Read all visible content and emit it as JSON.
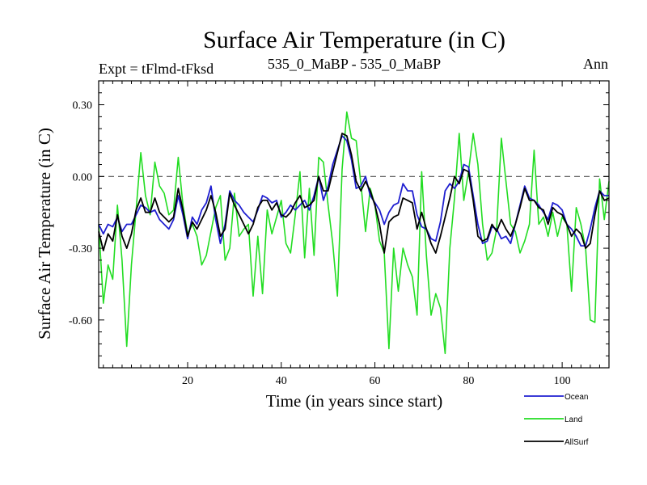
{
  "chart_data": {
    "type": "line",
    "title": "Surface Air Temperature (in C)",
    "subtitle_left": "Expt = tFlmd-tFksd",
    "subtitle_center": "535_0_MaBP - 535_0_MaBP",
    "subtitle_right": "Ann",
    "xlabel": "Time (in years since start)",
    "ylabel": "Surface Air Temperature (in C)",
    "xlim": [
      1,
      110
    ],
    "ylim": [
      -0.8,
      0.4
    ],
    "xticks": [
      20,
      40,
      60,
      80,
      100
    ],
    "xtick_labels": [
      "20",
      "40",
      "60",
      "80",
      "100"
    ],
    "yticks": [
      0.3,
      0.0,
      -0.3,
      -0.6
    ],
    "ytick_labels": [
      "0.30",
      "0.00",
      "-0.30",
      "-0.60"
    ],
    "reference_line": 0.0,
    "legend_position": "bottom-right",
    "colors": {
      "Ocean": "#1f1fd0",
      "Land": "#22dd22",
      "AllSurf": "#000000",
      "reference": "#555555"
    },
    "x": [
      1,
      2,
      3,
      4,
      5,
      6,
      7,
      8,
      9,
      10,
      11,
      12,
      13,
      14,
      15,
      16,
      17,
      18,
      19,
      20,
      21,
      22,
      23,
      24,
      25,
      26,
      27,
      28,
      29,
      30,
      31,
      32,
      33,
      34,
      35,
      36,
      37,
      38,
      39,
      40,
      41,
      42,
      43,
      44,
      45,
      46,
      47,
      48,
      49,
      50,
      51,
      52,
      53,
      54,
      55,
      56,
      57,
      58,
      59,
      60,
      61,
      62,
      63,
      64,
      65,
      66,
      67,
      68,
      69,
      70,
      71,
      72,
      73,
      74,
      75,
      76,
      77,
      78,
      79,
      80,
      81,
      82,
      83,
      84,
      85,
      86,
      87,
      88,
      89,
      90,
      91,
      92,
      93,
      94,
      95,
      96,
      97,
      98,
      99,
      100,
      101,
      102,
      103,
      104,
      105,
      106,
      107,
      108,
      109,
      110
    ],
    "series": [
      {
        "name": "Land",
        "values": [
          -0.2,
          -0.53,
          -0.37,
          -0.43,
          -0.12,
          -0.35,
          -0.71,
          -0.37,
          -0.14,
          0.1,
          -0.08,
          -0.16,
          0.06,
          -0.04,
          -0.07,
          -0.16,
          -0.14,
          0.08,
          -0.12,
          -0.24,
          -0.2,
          -0.25,
          -0.37,
          -0.33,
          -0.23,
          -0.13,
          -0.08,
          -0.35,
          -0.3,
          -0.07,
          -0.25,
          -0.22,
          -0.2,
          -0.5,
          -0.25,
          -0.49,
          -0.14,
          -0.24,
          -0.17,
          -0.1,
          -0.28,
          -0.32,
          -0.16,
          0.02,
          -0.34,
          -0.05,
          -0.33,
          0.08,
          0.06,
          -0.12,
          -0.28,
          -0.5,
          0.03,
          0.27,
          0.16,
          0.15,
          -0.03,
          -0.23,
          -0.05,
          -0.12,
          -0.27,
          -0.32,
          -0.72,
          -0.3,
          -0.48,
          -0.3,
          -0.37,
          -0.42,
          -0.58,
          0.02,
          -0.33,
          -0.58,
          -0.49,
          -0.55,
          -0.74,
          -0.3,
          -0.09,
          0.18,
          -0.1,
          0.02,
          0.18,
          0.05,
          -0.2,
          -0.35,
          -0.32,
          -0.22,
          0.16,
          -0.02,
          -0.2,
          -0.23,
          -0.32,
          -0.27,
          -0.2,
          0.11,
          -0.2,
          -0.17,
          -0.25,
          -0.15,
          -0.25,
          -0.17,
          -0.2,
          -0.48,
          -0.13,
          -0.2,
          -0.3,
          -0.6,
          -0.61,
          -0.01,
          -0.18,
          -0.02
        ]
      },
      {
        "name": "Ocean",
        "values": [
          -0.2,
          -0.24,
          -0.2,
          -0.21,
          -0.17,
          -0.23,
          -0.2,
          -0.2,
          -0.16,
          -0.12,
          -0.13,
          -0.15,
          -0.14,
          -0.18,
          -0.2,
          -0.22,
          -0.18,
          -0.08,
          -0.16,
          -0.26,
          -0.17,
          -0.2,
          -0.14,
          -0.11,
          -0.04,
          -0.18,
          -0.28,
          -0.2,
          -0.06,
          -0.1,
          -0.12,
          -0.15,
          -0.17,
          -0.19,
          -0.14,
          -0.08,
          -0.09,
          -0.11,
          -0.1,
          -0.17,
          -0.15,
          -0.12,
          -0.14,
          -0.12,
          -0.1,
          -0.14,
          -0.08,
          0.0,
          -0.1,
          -0.04,
          0.05,
          0.11,
          0.17,
          0.15,
          0.07,
          -0.05,
          -0.04,
          0.0,
          -0.08,
          -0.11,
          -0.14,
          -0.2,
          -0.15,
          -0.12,
          -0.11,
          -0.03,
          -0.06,
          -0.06,
          -0.16,
          -0.21,
          -0.22,
          -0.26,
          -0.27,
          -0.19,
          -0.06,
          -0.03,
          -0.05,
          -0.02,
          0.05,
          0.04,
          -0.08,
          -0.2,
          -0.28,
          -0.27,
          -0.21,
          -0.22,
          -0.26,
          -0.25,
          -0.28,
          -0.2,
          -0.12,
          -0.04,
          -0.09,
          -0.1,
          -0.12,
          -0.15,
          -0.18,
          -0.11,
          -0.12,
          -0.14,
          -0.2,
          -0.22,
          -0.25,
          -0.29,
          -0.29,
          -0.22,
          -0.13,
          -0.06,
          -0.08,
          -0.08
        ]
      },
      {
        "name": "AllSurf",
        "values": [
          -0.23,
          -0.31,
          -0.24,
          -0.27,
          -0.16,
          -0.25,
          -0.3,
          -0.24,
          -0.14,
          -0.09,
          -0.15,
          -0.15,
          -0.09,
          -0.15,
          -0.17,
          -0.19,
          -0.17,
          -0.05,
          -0.14,
          -0.25,
          -0.19,
          -0.22,
          -0.18,
          -0.14,
          -0.08,
          -0.15,
          -0.25,
          -0.22,
          -0.07,
          -0.12,
          -0.16,
          -0.2,
          -0.24,
          -0.2,
          -0.13,
          -0.1,
          -0.1,
          -0.14,
          -0.11,
          -0.16,
          -0.17,
          -0.15,
          -0.11,
          -0.08,
          -0.13,
          -0.12,
          -0.1,
          0.0,
          -0.06,
          -0.06,
          0.02,
          0.1,
          0.18,
          0.17,
          0.09,
          -0.02,
          -0.06,
          -0.02,
          -0.06,
          -0.12,
          -0.2,
          -0.32,
          -0.19,
          -0.17,
          -0.16,
          -0.09,
          -0.1,
          -0.11,
          -0.22,
          -0.15,
          -0.22,
          -0.28,
          -0.32,
          -0.25,
          -0.17,
          -0.09,
          0.0,
          -0.03,
          0.03,
          0.02,
          -0.1,
          -0.25,
          -0.27,
          -0.26,
          -0.2,
          -0.23,
          -0.18,
          -0.22,
          -0.25,
          -0.2,
          -0.13,
          -0.05,
          -0.1,
          -0.1,
          -0.13,
          -0.14,
          -0.2,
          -0.13,
          -0.15,
          -0.16,
          -0.2,
          -0.25,
          -0.22,
          -0.24,
          -0.3,
          -0.28,
          -0.16,
          -0.06,
          -0.1,
          -0.09
        ]
      }
    ]
  }
}
